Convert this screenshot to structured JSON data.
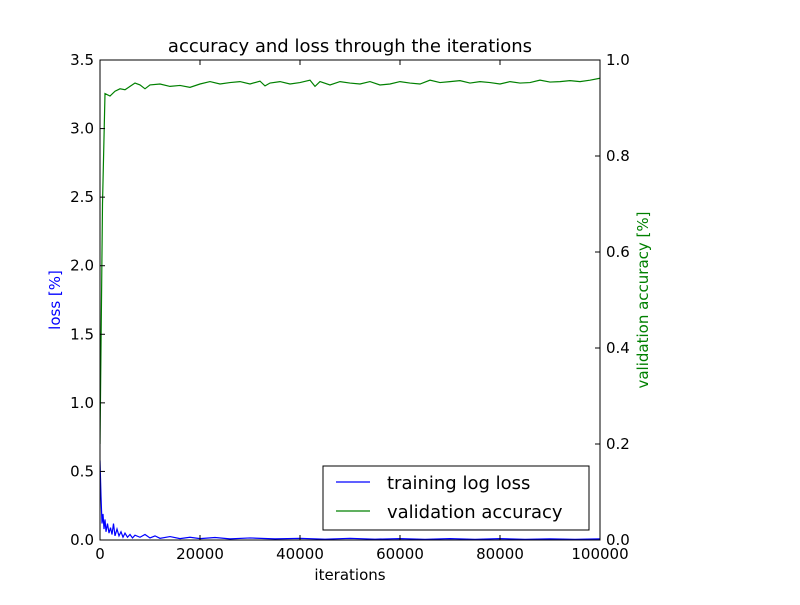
{
  "chart_data": {
    "type": "line",
    "title": "accuracy and loss through the iterations",
    "xlabel": "iterations",
    "ylabel_left": "loss [%]",
    "ylabel_right": "validation accuracy [%]",
    "xlim": [
      0,
      100000
    ],
    "ylim_left": [
      0,
      3.5
    ],
    "ylim_right": [
      0,
      1.0
    ],
    "x_ticks": [
      0,
      20000,
      40000,
      60000,
      80000,
      100000
    ],
    "x_tick_labels": [
      "0",
      "20000",
      "40000",
      "60000",
      "80000",
      "100000"
    ],
    "y_left_ticks": [
      0,
      0.5,
      1.0,
      1.5,
      2.0,
      2.5,
      3.0,
      3.5
    ],
    "y_left_tick_labels": [
      "0.0",
      "0.5",
      "1.0",
      "1.5",
      "2.0",
      "2.5",
      "3.0",
      "3.5"
    ],
    "y_right_ticks": [
      0,
      0.2,
      0.4,
      0.6,
      0.8,
      1.0
    ],
    "y_right_tick_labels": [
      "0.0",
      "0.2",
      "0.4",
      "0.6",
      "0.8",
      "1.0"
    ],
    "grid": false,
    "legend": {
      "placement": "lower-right"
    },
    "colors": {
      "loss": "#0000ff",
      "accuracy": "#008000"
    },
    "series": [
      {
        "name": "training log loss",
        "axis": "left",
        "x": [
          0,
          200,
          400,
          600,
          800,
          1000,
          1200,
          1500,
          1800,
          2100,
          2400,
          2700,
          3000,
          3400,
          3800,
          4200,
          4600,
          5000,
          5500,
          6000,
          6500,
          7000,
          8000,
          9000,
          10000,
          11000,
          12000,
          14000,
          16000,
          18000,
          20000,
          23000,
          26000,
          30000,
          35000,
          40000,
          45000,
          50000,
          55000,
          60000,
          65000,
          70000,
          75000,
          80000,
          85000,
          90000,
          95000,
          100000
        ],
        "values": [
          0.58,
          0.32,
          0.12,
          0.19,
          0.08,
          0.15,
          0.06,
          0.12,
          0.05,
          0.09,
          0.04,
          0.12,
          0.03,
          0.08,
          0.03,
          0.06,
          0.02,
          0.05,
          0.02,
          0.04,
          0.015,
          0.035,
          0.02,
          0.04,
          0.015,
          0.03,
          0.012,
          0.025,
          0.01,
          0.02,
          0.01,
          0.018,
          0.008,
          0.015,
          0.008,
          0.012,
          0.006,
          0.012,
          0.006,
          0.01,
          0.005,
          0.01,
          0.005,
          0.01,
          0.005,
          0.008,
          0.005,
          0.008
        ]
      },
      {
        "name": "validation accuracy",
        "axis": "right",
        "x": [
          0,
          500,
          1000,
          2000,
          3000,
          4000,
          5000,
          6000,
          7000,
          8000,
          9000,
          10000,
          12000,
          14000,
          16000,
          18000,
          20000,
          22000,
          24000,
          26000,
          28000,
          30000,
          32000,
          33000,
          34000,
          36000,
          38000,
          40000,
          42000,
          43000,
          44000,
          46000,
          48000,
          50000,
          52000,
          54000,
          56000,
          58000,
          60000,
          62000,
          64000,
          66000,
          68000,
          70000,
          72000,
          74000,
          76000,
          78000,
          80000,
          82000,
          84000,
          86000,
          88000,
          90000,
          92000,
          94000,
          96000,
          98000,
          100000
        ],
        "values": [
          0.2,
          0.7,
          0.93,
          0.925,
          0.935,
          0.94,
          0.938,
          0.945,
          0.952,
          0.948,
          0.94,
          0.948,
          0.95,
          0.945,
          0.947,
          0.943,
          0.95,
          0.955,
          0.95,
          0.953,
          0.955,
          0.95,
          0.956,
          0.946,
          0.952,
          0.955,
          0.95,
          0.953,
          0.958,
          0.945,
          0.955,
          0.948,
          0.955,
          0.952,
          0.95,
          0.955,
          0.948,
          0.95,
          0.955,
          0.952,
          0.95,
          0.958,
          0.953,
          0.955,
          0.957,
          0.952,
          0.955,
          0.953,
          0.95,
          0.955,
          0.952,
          0.953,
          0.958,
          0.954,
          0.955,
          0.957,
          0.955,
          0.958,
          0.962
        ]
      }
    ]
  }
}
